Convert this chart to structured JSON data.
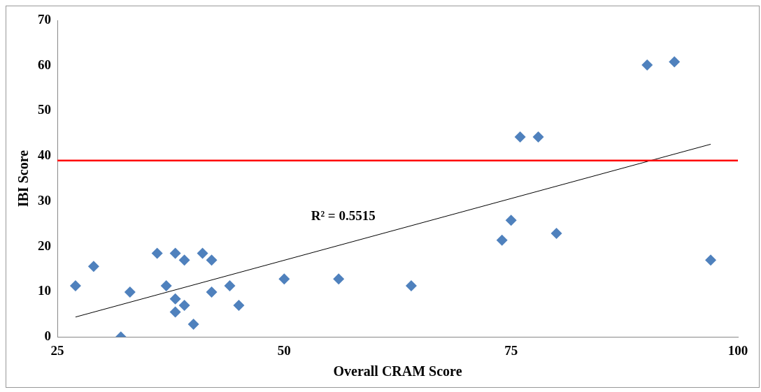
{
  "chart_data": {
    "type": "scatter",
    "xlabel": "Overall CRAM Score",
    "ylabel": "IBI Score",
    "grid": false,
    "legend": false,
    "xlim": [
      25,
      100
    ],
    "xticks": [
      25,
      50,
      75,
      100
    ],
    "ylim": [
      0,
      70
    ],
    "yticks": [
      0,
      10,
      20,
      30,
      40,
      50,
      60,
      70
    ],
    "series": [
      {
        "color": "#4f81bd",
        "marker": "diamond",
        "x": [
          27,
          29,
          32,
          33,
          36,
          37,
          38,
          38,
          38,
          39,
          39,
          40,
          41,
          42,
          42,
          44,
          45,
          50,
          56,
          64,
          74,
          75,
          76,
          78,
          80,
          90,
          93,
          97
        ],
        "values": [
          11.3,
          15.6,
          0,
          9.9,
          18.5,
          11.3,
          18.5,
          8.4,
          5.5,
          17,
          7,
          2.8,
          18.5,
          17,
          9.9,
          11.3,
          7,
          12.8,
          12.8,
          11.3,
          21.4,
          25.8,
          44.2,
          44.2,
          22.9,
          60.1,
          60.8,
          17
        ]
      },
      {
        "type": "line",
        "color": "#000000",
        "x": [
          27,
          97
        ],
        "values": [
          4.4,
          42.6
        ]
      }
    ],
    "ref_lines": [
      {
        "axis": "y",
        "value": 39,
        "color": "#ff0000"
      }
    ],
    "annotations": [
      "R² = 0.5515"
    ]
  }
}
